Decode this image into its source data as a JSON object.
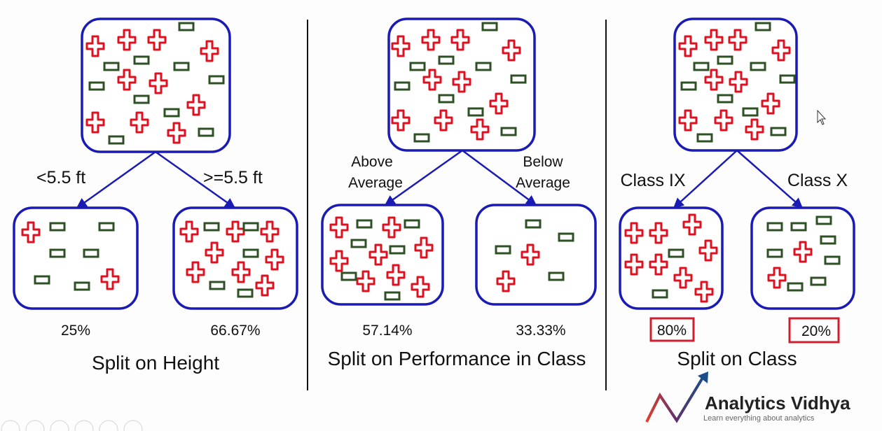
{
  "colors": {
    "node_border": "#1a1ab4",
    "plus": "#e01020",
    "minus": "#2e5025",
    "highlight_box": "#cc2030"
  },
  "panels": [
    {
      "title": "Split on Height",
      "left_branch": "<5.5 ft",
      "right_branch": ">=5.5 ft",
      "left_percent": "25%",
      "right_percent": "66.67%"
    },
    {
      "title": "Split on Performance in Class",
      "left_branch_line1": "Above",
      "left_branch_line2": "Average",
      "right_branch_line1": "Below",
      "right_branch_line2": "Average",
      "left_percent": "57.14%",
      "right_percent": "33.33%"
    },
    {
      "title": "Split on Class",
      "left_branch": "Class IX",
      "right_branch": "Class X",
      "left_percent": "80%",
      "right_percent": "20%"
    }
  ],
  "logo": {
    "name": "Analytics Vidhya",
    "tagline": "Learn everything about analytics"
  },
  "player_controls": [
    "previous-icon",
    "next-icon",
    "pen-icon",
    "slides-icon",
    "zoom-icon",
    "more-icon"
  ]
}
